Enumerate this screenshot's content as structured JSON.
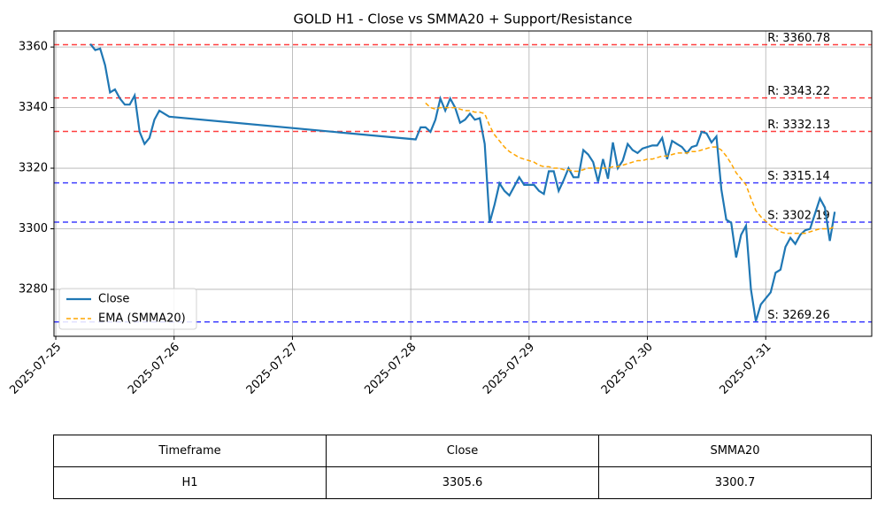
{
  "chart_data": {
    "type": "line",
    "title": "GOLD H1 - Close vs SMMA20 + Support/Resistance",
    "x": [
      "2025-07-25T07:00",
      "2025-07-25T08:00",
      "2025-07-25T09:00",
      "2025-07-25T10:00",
      "2025-07-25T11:00",
      "2025-07-25T12:00",
      "2025-07-25T13:00",
      "2025-07-25T14:00",
      "2025-07-25T15:00",
      "2025-07-25T16:00",
      "2025-07-25T17:00",
      "2025-07-25T18:00",
      "2025-07-25T19:00",
      "2025-07-25T20:00",
      "2025-07-25T21:00",
      "2025-07-25T22:00",
      "2025-07-25T23:00",
      "2025-07-28T01:00",
      "2025-07-28T02:00",
      "2025-07-28T03:00",
      "2025-07-28T04:00",
      "2025-07-28T05:00",
      "2025-07-28T06:00",
      "2025-07-28T07:00",
      "2025-07-28T08:00",
      "2025-07-28T09:00",
      "2025-07-28T10:00",
      "2025-07-28T11:00",
      "2025-07-28T12:00",
      "2025-07-28T13:00",
      "2025-07-28T14:00",
      "2025-07-28T15:00",
      "2025-07-28T16:00",
      "2025-07-28T17:00",
      "2025-07-28T18:00",
      "2025-07-28T19:00",
      "2025-07-28T20:00",
      "2025-07-28T21:00",
      "2025-07-28T22:00",
      "2025-07-28T23:00",
      "2025-07-29T00:00",
      "2025-07-29T01:00",
      "2025-07-29T02:00",
      "2025-07-29T03:00",
      "2025-07-29T04:00",
      "2025-07-29T05:00",
      "2025-07-29T06:00",
      "2025-07-29T07:00",
      "2025-07-29T08:00",
      "2025-07-29T09:00",
      "2025-07-29T10:00",
      "2025-07-29T11:00",
      "2025-07-29T12:00",
      "2025-07-29T13:00",
      "2025-07-29T14:00",
      "2025-07-29T15:00",
      "2025-07-29T16:00",
      "2025-07-29T17:00",
      "2025-07-29T18:00",
      "2025-07-29T19:00",
      "2025-07-29T20:00",
      "2025-07-29T21:00",
      "2025-07-29T22:00",
      "2025-07-29T23:00",
      "2025-07-30T00:00",
      "2025-07-30T01:00",
      "2025-07-30T02:00",
      "2025-07-30T03:00",
      "2025-07-30T04:00",
      "2025-07-30T05:00",
      "2025-07-30T06:00",
      "2025-07-30T07:00",
      "2025-07-30T08:00",
      "2025-07-30T09:00",
      "2025-07-30T10:00",
      "2025-07-30T11:00",
      "2025-07-30T12:00",
      "2025-07-30T13:00",
      "2025-07-30T14:00",
      "2025-07-30T15:00",
      "2025-07-30T16:00",
      "2025-07-30T17:00",
      "2025-07-30T18:00",
      "2025-07-30T19:00",
      "2025-07-30T20:00",
      "2025-07-30T21:00",
      "2025-07-30T22:00",
      "2025-07-30T23:00",
      "2025-07-31T00:00",
      "2025-07-31T01:00",
      "2025-07-31T02:00",
      "2025-07-31T03:00",
      "2025-07-31T04:00",
      "2025-07-31T05:00",
      "2025-07-31T06:00",
      "2025-07-31T07:00",
      "2025-07-31T08:00",
      "2025-07-31T09:00",
      "2025-07-31T10:00",
      "2025-07-31T11:00",
      "2025-07-31T12:00",
      "2025-07-31T13:00",
      "2025-07-31T14:00"
    ],
    "series": [
      {
        "name": "Close",
        "color": "#1f77b4",
        "dash": false,
        "values": [
          3361,
          3359,
          3359.5,
          3354,
          3345,
          3346,
          3343,
          3341,
          3341,
          3344,
          3332,
          3328,
          3330,
          3336,
          3339,
          3338,
          3337,
          3329.5,
          3333.5,
          3333.5,
          3332,
          3336,
          3343,
          3339,
          3343,
          3340,
          3335,
          3336,
          3338,
          3336,
          3336.5,
          3328,
          3302,
          3308,
          3315,
          3312.5,
          3311,
          3314,
          3317,
          3314.5,
          3314.5,
          3314.5,
          3312.5,
          3311.5,
          3319,
          3319,
          3312.5,
          3316,
          3320,
          3317,
          3317,
          3326,
          3324.5,
          3322,
          3315.5,
          3323,
          3316.5,
          3328.5,
          3320,
          3322.5,
          3328,
          3326,
          3325,
          3326.5,
          3327,
          3327.5,
          3327.5,
          3330,
          3323,
          3329,
          3328,
          3327,
          3325,
          3327,
          3327.5,
          3332,
          3331.5,
          3328.5,
          3330.5,
          3313,
          3303,
          3302,
          3290.5,
          3298,
          3301,
          3280,
          3269.5,
          3275,
          3277,
          3279,
          3285.5,
          3286.5,
          3294,
          3297,
          3295,
          3298,
          3299.5,
          3300,
          3305,
          3310,
          3307,
          3296,
          3305.6
        ]
      },
      {
        "name": "EMA (SMMA20)",
        "color": "#ffa500",
        "dash": true,
        "values": [
          null,
          null,
          null,
          null,
          null,
          null,
          null,
          null,
          null,
          null,
          null,
          null,
          null,
          null,
          null,
          null,
          null,
          null,
          null,
          3341.5,
          3340,
          3339.5,
          3340,
          3340,
          3340,
          3340,
          3339.5,
          3339,
          3339,
          3338.5,
          3338.5,
          3338,
          3334,
          3331,
          3329,
          3327,
          3325.5,
          3324.5,
          3323.5,
          3323,
          3322.5,
          3322,
          3321,
          3320.5,
          3320.5,
          3320,
          3320,
          3319.5,
          3319.5,
          3319,
          3319,
          3319.5,
          3320,
          3320,
          3320,
          3320,
          3320,
          3320.5,
          3320.5,
          3321,
          3321.5,
          3322,
          3322.5,
          3322.5,
          3323,
          3323,
          3323.5,
          3324,
          3324,
          3324.5,
          3325,
          3325,
          3325,
          3325.5,
          3325.5,
          3326,
          3326.5,
          3327,
          3327,
          3326,
          3324,
          3321.5,
          3318.5,
          3316.5,
          3314.5,
          3310,
          3306,
          3304,
          3302.5,
          3301,
          3300,
          3299,
          3298.5,
          3298.5,
          3298.5,
          3298.5,
          3298.5,
          3299,
          3299.5,
          3300,
          3300,
          3300,
          3300.7
        ]
      }
    ],
    "levels": [
      {
        "value": 3360.78,
        "label": "R: 3360.78",
        "color": "#ff0000"
      },
      {
        "value": 3343.22,
        "label": "R: 3343.22",
        "color": "#ff0000"
      },
      {
        "value": 3332.13,
        "label": "R: 3332.13",
        "color": "#ff0000"
      },
      {
        "value": 3315.14,
        "label": "S: 3315.14",
        "color": "#0000ff"
      },
      {
        "value": 3302.19,
        "label": "S: 3302.19",
        "color": "#0000ff"
      },
      {
        "value": 3269.26,
        "label": "S: 3269.26",
        "color": "#0000ff"
      }
    ],
    "xlim": [
      "2025-07-24T23:38",
      "2025-07-31T21:30"
    ],
    "xticks": [
      "2025-07-25",
      "2025-07-26",
      "2025-07-27",
      "2025-07-28",
      "2025-07-29",
      "2025-07-30",
      "2025-07-31"
    ],
    "ylim": [
      3264.5,
      3365.3
    ],
    "yticks": [
      3280,
      3300,
      3320,
      3340,
      3360
    ],
    "grid": true,
    "legend": "lower left"
  },
  "table": {
    "header": [
      "Timeframe",
      "Close",
      "SMMA20"
    ],
    "rows": [
      [
        "H1",
        "3305.6",
        "3300.7"
      ]
    ]
  }
}
